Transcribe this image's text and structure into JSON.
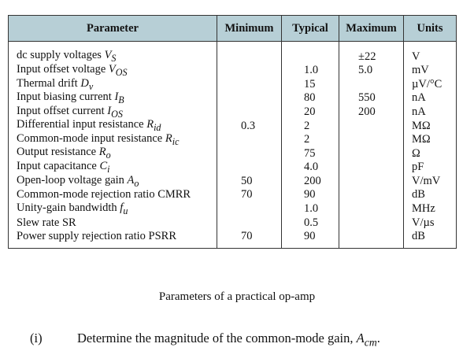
{
  "table": {
    "headers": {
      "parameter": "Parameter",
      "minimum": "Minimum",
      "typical": "Typical",
      "maximum": "Maximum",
      "units": "Units"
    },
    "rows": [
      {
        "parameter": "dc supply voltages V",
        "symbol": "V",
        "subscript": "S",
        "minimum": "",
        "typical": "",
        "maximum": "±22",
        "units": "V"
      },
      {
        "parameter": "Input offset voltage V",
        "subscript": "OS",
        "minimum": "",
        "typical": "1.0",
        "maximum": "5.0",
        "units": "mV"
      },
      {
        "parameter": "Thermal drift D",
        "subscript": "v",
        "minimum": "",
        "typical": "15",
        "maximum": "",
        "units": "µV/°C"
      },
      {
        "parameter": "Input biasing current I",
        "subscript": "B",
        "minimum": "",
        "typical": "80",
        "maximum": "550",
        "units": "nA"
      },
      {
        "parameter": "Input offset current I",
        "subscript": "OS",
        "minimum": "",
        "typical": "20",
        "maximum": "200",
        "units": "nA"
      },
      {
        "parameter": "Differential input resistance R",
        "subscript": "id",
        "minimum": "0.3",
        "typical": "2",
        "maximum": "",
        "units": "MΩ"
      },
      {
        "parameter": "Common-mode input resistance R",
        "subscript": "ic",
        "minimum": "",
        "typical": "2",
        "maximum": "",
        "units": "MΩ"
      },
      {
        "parameter": "Output resistance R",
        "subscript": "o",
        "minimum": "",
        "typical": "75",
        "maximum": "",
        "units": "Ω"
      },
      {
        "parameter": "Input capacitance C",
        "subscript": "i",
        "minimum": "",
        "typical": "4.0",
        "maximum": "",
        "units": "pF"
      },
      {
        "parameter": "Open-loop voltage gain A",
        "subscript": "o",
        "minimum": "50",
        "typical": "200",
        "maximum": "",
        "units": "V/mV"
      },
      {
        "parameter": "Common-mode rejection ratio CMRR",
        "subscript": "",
        "minimum": "70",
        "typical": "90",
        "maximum": "",
        "units": "dB"
      },
      {
        "parameter": "Unity-gain bandwidth f",
        "subscript": "u",
        "minimum": "",
        "typical": "1.0",
        "maximum": "",
        "units": "MHz"
      },
      {
        "parameter": "Slew rate SR",
        "subscript": "",
        "minimum": "",
        "typical": "0.5",
        "maximum": "",
        "units": "V/µs"
      },
      {
        "parameter": "Power supply rejection ratio PSRR",
        "subscript": "",
        "minimum": "70",
        "typical": "90",
        "maximum": "",
        "units": "dB"
      }
    ]
  },
  "caption": "Parameters of a practical op-amp",
  "question": {
    "number": "(i)",
    "text": "Determine the magnitude of the common-mode gain, ",
    "symbol": "A",
    "symbol_subscript": "cm",
    "end": "."
  },
  "colors": {
    "header_bg": "#b7cfd6",
    "border": "#333333"
  }
}
